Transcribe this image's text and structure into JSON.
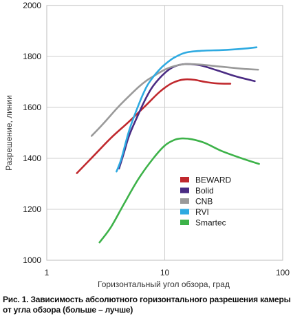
{
  "chart_data": {
    "type": "line",
    "xlabel": "Горизонтальный угол обзора, град",
    "ylabel": "Разрешение, линии",
    "xscale": "log",
    "xlim": [
      1,
      100
    ],
    "ylim": [
      1000,
      2000
    ],
    "xticks": [
      1,
      10,
      100
    ],
    "yticks": [
      1000,
      1200,
      1400,
      1600,
      1800,
      2000
    ],
    "grid": true,
    "legend_position": "right-middle",
    "series": [
      {
        "name": "BEWARD",
        "color": "#c0282d",
        "x": [
          1.8,
          2.5,
          3.5,
          5,
          7,
          9,
          11,
          13,
          15,
          18,
          22,
          28,
          36
        ],
        "y": [
          1342,
          1410,
          1480,
          1545,
          1610,
          1660,
          1690,
          1705,
          1710,
          1708,
          1700,
          1694,
          1693
        ]
      },
      {
        "name": "Bolid",
        "color": "#4a2b83",
        "x": [
          4.1,
          4.5,
          5,
          6,
          7,
          8,
          10,
          12,
          15,
          20,
          28,
          40,
          58
        ],
        "y": [
          1360,
          1420,
          1490,
          1575,
          1640,
          1685,
          1735,
          1760,
          1770,
          1765,
          1745,
          1722,
          1703
        ]
      },
      {
        "name": "CNB",
        "color": "#9a9a9a",
        "x": [
          2.4,
          3,
          4,
          5,
          6,
          7,
          8,
          10,
          12,
          15,
          20,
          30,
          45,
          62
        ],
        "y": [
          1488,
          1535,
          1600,
          1645,
          1680,
          1705,
          1722,
          1748,
          1762,
          1770,
          1768,
          1760,
          1752,
          1748
        ]
      },
      {
        "name": "RVI",
        "color": "#2eaae1",
        "x": [
          3.9,
          4.3,
          5,
          6,
          7,
          8,
          9,
          10,
          12,
          15,
          20,
          30,
          45,
          60
        ],
        "y": [
          1348,
          1400,
          1510,
          1610,
          1680,
          1720,
          1748,
          1768,
          1795,
          1815,
          1822,
          1825,
          1830,
          1836
        ]
      },
      {
        "name": "Smartec",
        "color": "#3db249",
        "x": [
          2.8,
          3.5,
          4.5,
          6,
          8,
          10,
          12,
          14,
          17,
          22,
          30,
          45,
          63
        ],
        "y": [
          1070,
          1130,
          1220,
          1320,
          1400,
          1450,
          1472,
          1478,
          1475,
          1460,
          1430,
          1400,
          1378
        ]
      }
    ]
  },
  "caption": {
    "line1": "Рис. 1. Зависимость абсолютного горизонтального разрешения камеры",
    "line2": "от угла обзора  (больше – лучше)"
  }
}
